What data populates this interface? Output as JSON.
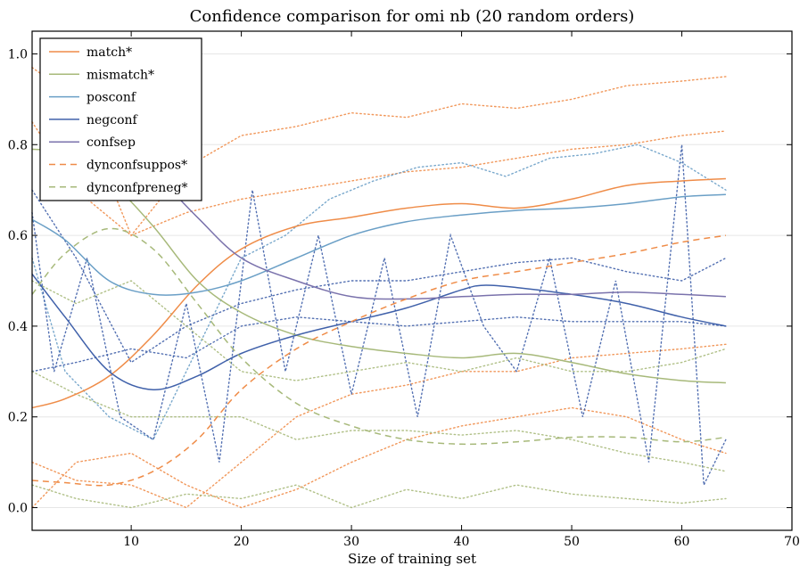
{
  "chart_data": {
    "type": "line",
    "title": "Confidence comparison for omi nb (20 random orders)",
    "xlabel": "Size of training set",
    "ylabel": "",
    "xlim": [
      1,
      70
    ],
    "ylim": [
      -0.05,
      1.05
    ],
    "xticks": [
      10,
      20,
      30,
      40,
      50,
      60,
      70
    ],
    "yticks": [
      0.0,
      0.2,
      0.4,
      0.6,
      0.8,
      1.0
    ],
    "xtick_labels": [
      "10",
      "20",
      "30",
      "40",
      "50",
      "60",
      "70"
    ],
    "ytick_labels": [
      "0.0",
      "0.2",
      "0.4",
      "0.6",
      "0.8",
      "1.0"
    ],
    "grid": "horizontal",
    "legend_position": "top-left",
    "series": [
      {
        "name": "match*",
        "color": "#ef8c48",
        "style": "solid",
        "x": [
          1,
          4,
          8,
          12,
          16,
          20,
          25,
          30,
          35,
          40,
          45,
          50,
          55,
          60,
          64
        ],
        "y": [
          0.22,
          0.24,
          0.29,
          0.38,
          0.49,
          0.57,
          0.62,
          0.64,
          0.66,
          0.67,
          0.66,
          0.68,
          0.71,
          0.72,
          0.725
        ]
      },
      {
        "name": "mismatch*",
        "color": "#a7b97a",
        "style": "solid",
        "x": [
          1,
          4,
          8,
          12,
          16,
          20,
          25,
          30,
          35,
          40,
          45,
          50,
          55,
          60,
          64
        ],
        "y": [
          0.79,
          0.78,
          0.72,
          0.62,
          0.5,
          0.43,
          0.38,
          0.355,
          0.34,
          0.33,
          0.34,
          0.32,
          0.295,
          0.28,
          0.275
        ]
      },
      {
        "name": "posconf",
        "color": "#6a9fc6",
        "style": "solid",
        "x": [
          1,
          4,
          8,
          12,
          16,
          20,
          25,
          30,
          35,
          40,
          45,
          50,
          55,
          60,
          64
        ],
        "y": [
          0.635,
          0.59,
          0.5,
          0.47,
          0.475,
          0.5,
          0.55,
          0.6,
          0.63,
          0.645,
          0.655,
          0.66,
          0.67,
          0.685,
          0.69
        ]
      },
      {
        "name": "negconf",
        "color": "#4061aa",
        "style": "solid",
        "x": [
          1,
          4,
          8,
          12,
          16,
          20,
          25,
          30,
          35,
          40,
          42,
          45,
          50,
          55,
          60,
          64
        ],
        "y": [
          0.515,
          0.42,
          0.3,
          0.26,
          0.29,
          0.34,
          0.38,
          0.41,
          0.44,
          0.48,
          0.49,
          0.485,
          0.47,
          0.45,
          0.42,
          0.4
        ]
      },
      {
        "name": "confsep",
        "color": "#7a72ac",
        "style": "solid",
        "x": [
          8,
          12,
          16,
          20,
          25,
          30,
          35,
          40,
          45,
          50,
          55,
          60,
          64
        ],
        "y": [
          0.83,
          0.74,
          0.64,
          0.55,
          0.5,
          0.465,
          0.46,
          0.465,
          0.47,
          0.47,
          0.475,
          0.47,
          0.465
        ]
      },
      {
        "name": "dynconfsuppos*",
        "color": "#ef8c48",
        "style": "dashed",
        "x": [
          1,
          4,
          8,
          12,
          16,
          20,
          25,
          30,
          35,
          40,
          45,
          50,
          55,
          60,
          64
        ],
        "y": [
          0.06,
          0.055,
          0.05,
          0.08,
          0.15,
          0.26,
          0.35,
          0.41,
          0.46,
          0.5,
          0.52,
          0.54,
          0.56,
          0.585,
          0.6
        ]
      },
      {
        "name": "dynconfpreneg*",
        "color": "#a7b97a",
        "style": "dashed",
        "x": [
          1,
          4,
          8,
          12,
          16,
          20,
          25,
          30,
          35,
          40,
          45,
          50,
          55,
          60,
          64
        ],
        "y": [
          0.47,
          0.56,
          0.615,
          0.57,
          0.45,
          0.33,
          0.23,
          0.18,
          0.15,
          0.14,
          0.145,
          0.155,
          0.155,
          0.145,
          0.155
        ]
      }
    ],
    "background_series": [
      {
        "color": "#ef8c48",
        "x": [
          1,
          5,
          10,
          15,
          20,
          25,
          30,
          35,
          40,
          45,
          50,
          55,
          60,
          64
        ],
        "y": [
          0.97,
          0.9,
          0.6,
          0.75,
          0.82,
          0.84,
          0.87,
          0.86,
          0.89,
          0.88,
          0.9,
          0.93,
          0.94,
          0.95
        ]
      },
      {
        "color": "#ef8c48",
        "x": [
          1,
          5,
          10,
          15,
          20,
          25,
          30,
          35,
          40,
          45,
          50,
          55,
          60,
          64
        ],
        "y": [
          0.85,
          0.7,
          0.6,
          0.65,
          0.68,
          0.7,
          0.72,
          0.74,
          0.75,
          0.77,
          0.79,
          0.8,
          0.82,
          0.83
        ]
      },
      {
        "color": "#ef8c48",
        "x": [
          1,
          5,
          10,
          15,
          20,
          25,
          30,
          35,
          40,
          45,
          50,
          55,
          60,
          64
        ],
        "y": [
          0.1,
          0.06,
          0.05,
          0.0,
          0.1,
          0.2,
          0.25,
          0.27,
          0.3,
          0.3,
          0.33,
          0.34,
          0.35,
          0.36
        ]
      },
      {
        "color": "#ef8c48",
        "x": [
          1,
          5,
          10,
          15,
          20,
          25,
          30,
          35,
          40,
          45,
          50,
          55,
          60,
          64
        ],
        "y": [
          0.0,
          0.1,
          0.12,
          0.05,
          0.0,
          0.04,
          0.1,
          0.15,
          0.18,
          0.2,
          0.22,
          0.2,
          0.15,
          0.12
        ]
      },
      {
        "color": "#6a9fc6",
        "x": [
          1,
          4,
          8,
          12,
          16,
          20,
          24,
          28,
          32,
          36,
          40,
          44,
          48,
          52,
          56,
          60,
          64
        ],
        "y": [
          0.55,
          0.3,
          0.2,
          0.15,
          0.35,
          0.55,
          0.6,
          0.68,
          0.72,
          0.75,
          0.76,
          0.73,
          0.77,
          0.78,
          0.8,
          0.76,
          0.7
        ]
      },
      {
        "color": "#4061aa",
        "x": [
          1,
          3,
          6,
          9,
          12,
          15,
          18,
          21,
          24,
          27,
          30,
          33,
          36,
          39,
          42,
          45,
          48,
          51,
          54,
          57,
          60,
          62,
          64
        ],
        "y": [
          0.65,
          0.3,
          0.55,
          0.2,
          0.15,
          0.45,
          0.1,
          0.7,
          0.3,
          0.6,
          0.25,
          0.55,
          0.2,
          0.6,
          0.4,
          0.3,
          0.55,
          0.2,
          0.5,
          0.1,
          0.8,
          0.05,
          0.15
        ]
      },
      {
        "color": "#4061aa",
        "x": [
          1,
          5,
          10,
          15,
          20,
          25,
          30,
          35,
          40,
          45,
          50,
          55,
          60,
          64
        ],
        "y": [
          0.7,
          0.55,
          0.32,
          0.4,
          0.45,
          0.48,
          0.5,
          0.5,
          0.52,
          0.54,
          0.55,
          0.52,
          0.5,
          0.55
        ]
      },
      {
        "color": "#4061aa",
        "x": [
          1,
          5,
          10,
          15,
          20,
          25,
          30,
          35,
          40,
          45,
          50,
          55,
          60,
          64
        ],
        "y": [
          0.3,
          0.32,
          0.35,
          0.33,
          0.4,
          0.42,
          0.41,
          0.4,
          0.41,
          0.42,
          0.41,
          0.41,
          0.41,
          0.4
        ]
      },
      {
        "color": "#a7b97a",
        "x": [
          1,
          5,
          10,
          15,
          20,
          25,
          30,
          35,
          40,
          45,
          50,
          55,
          60,
          64
        ],
        "y": [
          0.3,
          0.25,
          0.2,
          0.2,
          0.2,
          0.15,
          0.17,
          0.17,
          0.16,
          0.17,
          0.15,
          0.12,
          0.1,
          0.08
        ]
      },
      {
        "color": "#a7b97a",
        "x": [
          1,
          5,
          10,
          15,
          20,
          25,
          30,
          35,
          40,
          45,
          50,
          55,
          60,
          64
        ],
        "y": [
          0.05,
          0.02,
          0.0,
          0.03,
          0.02,
          0.05,
          0.0,
          0.04,
          0.02,
          0.05,
          0.03,
          0.02,
          0.01,
          0.02
        ]
      },
      {
        "color": "#a7b97a",
        "x": [
          1,
          5,
          10,
          15,
          20,
          25,
          30,
          35,
          40,
          45,
          50,
          55,
          60,
          64
        ],
        "y": [
          0.5,
          0.45,
          0.5,
          0.4,
          0.3,
          0.28,
          0.3,
          0.32,
          0.3,
          0.33,
          0.3,
          0.3,
          0.32,
          0.35
        ]
      }
    ]
  }
}
